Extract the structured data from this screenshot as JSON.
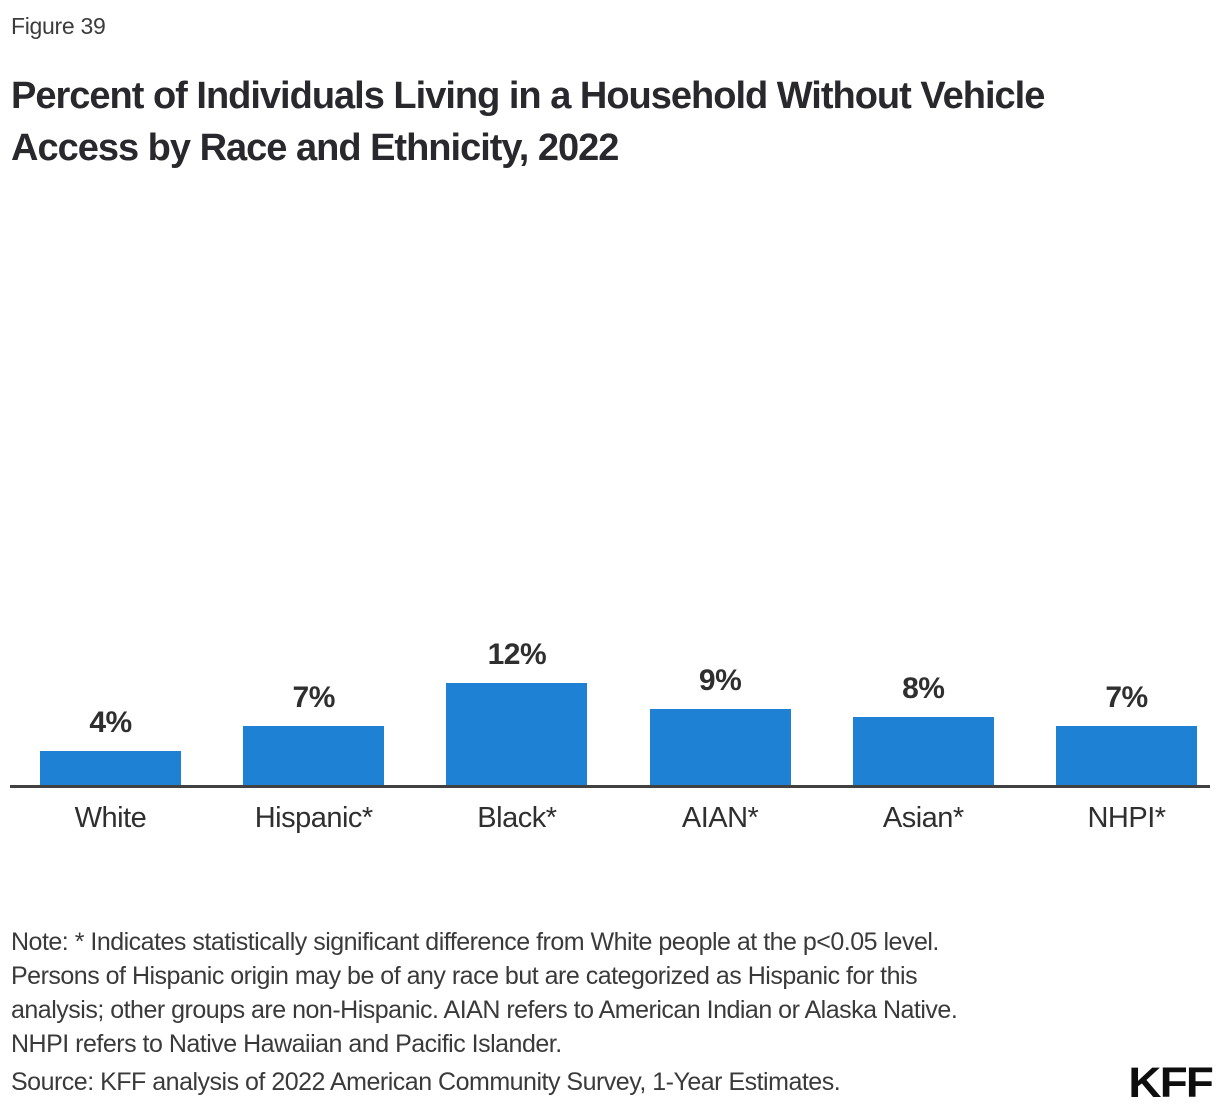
{
  "figure_label": "Figure 39",
  "title_line1": "Percent of Individuals Living in a Household Without Vehicle",
  "title_line2": "Access by Race and Ethnicity, 2022",
  "chart_data": {
    "type": "bar",
    "title": "Percent of Individuals Living in a Household Without Vehicle Access by Race and Ethnicity, 2022",
    "categories": [
      "White",
      "Hispanic*",
      "Black*",
      "AIAN*",
      "Asian*",
      "NHPI*"
    ],
    "values": [
      4,
      7,
      12,
      9,
      8,
      7
    ],
    "value_labels": [
      "4%",
      "7%",
      "12%",
      "9%",
      "8%",
      "7%"
    ],
    "xlabel": "",
    "ylabel": "",
    "ylim": [
      0,
      100
    ],
    "grid": false,
    "legend": false,
    "bar_color": "#1e81d4",
    "axis_color": "#414141",
    "data_label_position": "above-bar"
  },
  "note_lines": [
    "Note: * Indicates statistically significant difference from White people at the p<0.05 level.",
    "Persons of Hispanic origin may be of any race but are categorized as Hispanic for this",
    "analysis; other groups are non-Hispanic. AIAN refers to American Indian or Alaska Native.",
    "NHPI refers to Native Hawaiian and Pacific Islander."
  ],
  "source": "Source: KFF analysis of 2022 American Community Survey, 1-Year Estimates.",
  "logo_text": "KFF",
  "colors": {
    "background": "#ffffff",
    "bar": "#1e81d4",
    "axis": "#414141",
    "title_text": "#28282d",
    "body_text": "#3a3a3a"
  }
}
